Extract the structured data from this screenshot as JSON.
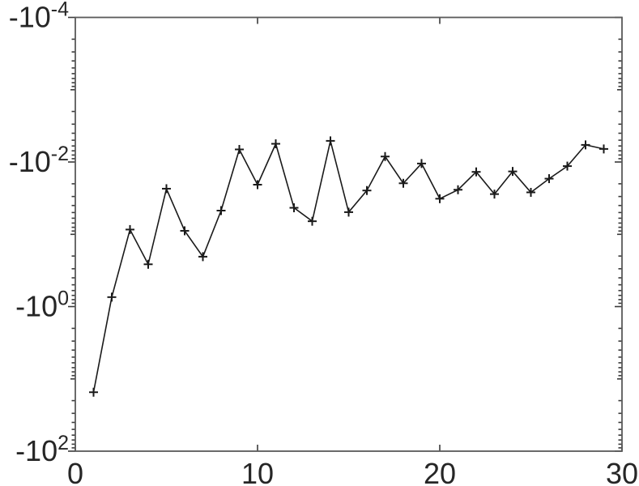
{
  "figure": {
    "background": "#ffffff",
    "line_color": "#1a1a1a",
    "marker_color": "#1a1a1a",
    "axis_color": "#5a5a5a",
    "tick_color": "#3a3a3a",
    "text_color": "#262626"
  },
  "chart_data": {
    "type": "line",
    "title": "",
    "xlabel": "",
    "ylabel": "",
    "legend": null,
    "grid": false,
    "marker": "+",
    "y_scale": "negative-log",
    "xlim": [
      0,
      30
    ],
    "ylim_exponents": [
      -4,
      2
    ],
    "x_ticks": [
      0,
      10,
      20,
      30
    ],
    "x_tick_labels": [
      "0",
      "10",
      "20",
      "30"
    ],
    "y_tick_exponents": [
      -4,
      -2,
      0,
      2
    ],
    "y_tick_labels": [
      {
        "base": "-10",
        "exp": "-4"
      },
      {
        "base": "-10",
        "exp": "-2"
      },
      {
        "base": "-10",
        "exp": "0"
      },
      {
        "base": "-10",
        "exp": "2"
      }
    ],
    "x": [
      1,
      2,
      3,
      4,
      5,
      6,
      7,
      8,
      9,
      10,
      11,
      12,
      13,
      14,
      15,
      16,
      17,
      18,
      19,
      20,
      21,
      22,
      23,
      24,
      25,
      26,
      27,
      28,
      29
    ],
    "y": [
      -15.3,
      -0.74,
      -0.086,
      -0.26,
      -0.0234,
      -0.0895,
      -0.204,
      -0.047,
      -0.0067,
      -0.0206,
      -0.0056,
      -0.043,
      -0.066,
      -0.0051,
      -0.0494,
      -0.0248,
      -0.0084,
      -0.0197,
      -0.0105,
      -0.0322,
      -0.0242,
      -0.0137,
      -0.0278,
      -0.0135,
      -0.0263,
      -0.017,
      -0.0114,
      -0.0058,
      -0.0066
    ]
  }
}
